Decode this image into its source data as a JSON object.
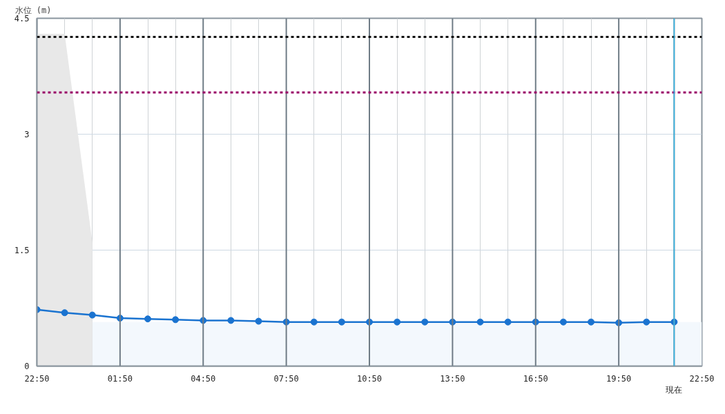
{
  "chart_data": {
    "type": "line",
    "ylabel": "水位 (m)",
    "categories": [
      "22:50",
      null,
      null,
      "01:50",
      null,
      null,
      "04:50",
      null,
      null,
      "07:50",
      null,
      null,
      "10:50",
      null,
      null,
      "13:50",
      null,
      null,
      "16:50",
      null,
      null,
      "19:50",
      null,
      "現在",
      "22:50"
    ],
    "series": [
      {
        "type": "area",
        "marker": "none",
        "color": "#e8e8e8",
        "values": [
          4.3,
          4.3,
          1.6,
          null,
          null,
          null,
          null,
          null,
          null,
          null,
          null,
          null,
          null,
          null,
          null,
          null,
          null,
          null,
          null,
          null,
          null,
          null,
          null,
          null,
          null
        ]
      },
      {
        "type": "area",
        "marker": "none",
        "color": "#f3f8fd",
        "values": [
          null,
          null,
          0.57,
          0.57,
          0.57,
          0.57,
          0.57,
          0.57,
          0.57,
          0.57,
          0.57,
          0.57,
          0.57,
          0.57,
          0.57,
          0.57,
          0.57,
          0.57,
          0.57,
          0.57,
          0.57,
          0.57,
          0.57,
          0.57,
          0.57
        ]
      },
      {
        "color": "#1a73d0",
        "values": [
          0.73,
          0.69,
          0.66,
          0.62,
          0.61,
          0.6,
          0.59,
          0.59,
          0.58,
          0.57,
          0.57,
          0.57,
          0.57,
          0.57,
          0.57,
          0.57,
          0.57,
          0.57,
          0.57,
          0.57,
          0.57,
          0.56,
          0.57,
          0.57,
          null
        ]
      }
    ],
    "marker": "circle",
    "line_style": "solid",
    "grid": true,
    "ylim": [
      0,
      4.5
    ],
    "yticks": [
      0,
      1.5,
      3,
      4.5
    ],
    "ref_lines": [
      {
        "axis": "y",
        "value": 4.26,
        "color": "#111111",
        "line_style": "dotted"
      },
      {
        "axis": "y",
        "value": 3.54,
        "color": "#990066",
        "line_style": "dotted"
      },
      {
        "axis": "x",
        "value": "現在",
        "color": "#33bbee",
        "line_style": "solid"
      }
    ]
  }
}
